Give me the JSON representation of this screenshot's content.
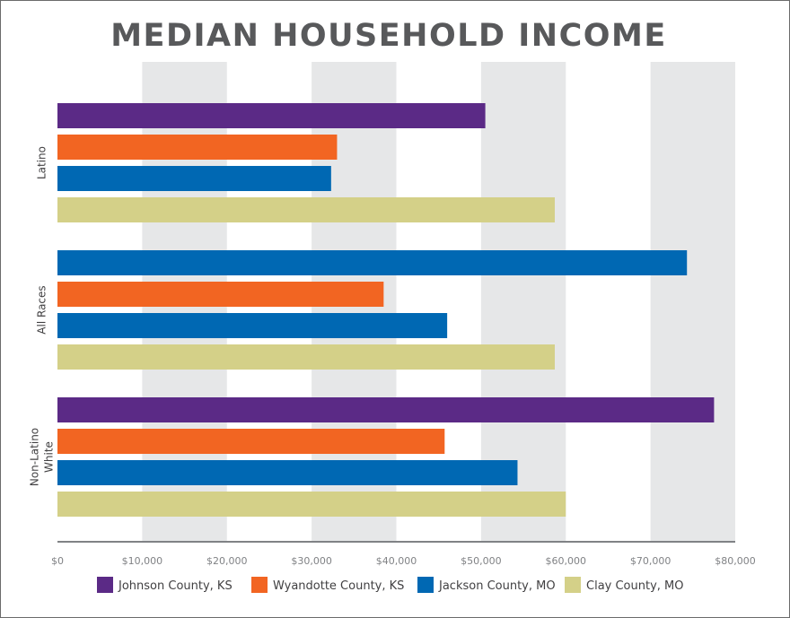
{
  "chart_data": {
    "type": "bar",
    "orientation": "horizontal",
    "title": "MEDIAN HOUSEHOLD INCOME",
    "xlabel": "",
    "ylabel": "",
    "xlim": [
      0,
      80000
    ],
    "x_ticks": [
      0,
      10000,
      20000,
      30000,
      40000,
      50000,
      60000,
      70000,
      80000
    ],
    "x_tick_labels": [
      "$0",
      "$10,000",
      "$20,000",
      "$30,000",
      "$40,000",
      "$50,000",
      "$60,000",
      "$70,000",
      "$80,000"
    ],
    "grid": "alternating vertical bands",
    "legend_position": "bottom",
    "categories": [
      {
        "label_lines": [
          "Latino"
        ]
      },
      {
        "label_lines": [
          "All Races"
        ]
      },
      {
        "label_lines": [
          "Non-Latino",
          "White"
        ]
      }
    ],
    "series": [
      {
        "name": "Johnson County, KS",
        "color": "#5b2a86",
        "values": [
          50500,
          null,
          77500
        ]
      },
      {
        "name": "Wyandotte County, KS",
        "color": "#f26522",
        "values": [
          33000,
          38500,
          45700
        ]
      },
      {
        "name": "Jackson County, MO",
        "color": "#0068b3",
        "values": [
          32300,
          46000,
          54300
        ]
      },
      {
        "name": "Clay County, MO",
        "color": "#d4d088",
        "values": [
          58700,
          58700,
          60000
        ]
      }
    ],
    "extra_bars": [
      {
        "category_index": 1,
        "slot": 0,
        "color": "#0068b3",
        "value": 74300
      }
    ]
  },
  "colors": {
    "title": "#58595b",
    "band": "#e6e7e8",
    "axis": "#808285",
    "tick_text": "#808285",
    "category_text": "#414042",
    "legend_text": "#414042"
  }
}
